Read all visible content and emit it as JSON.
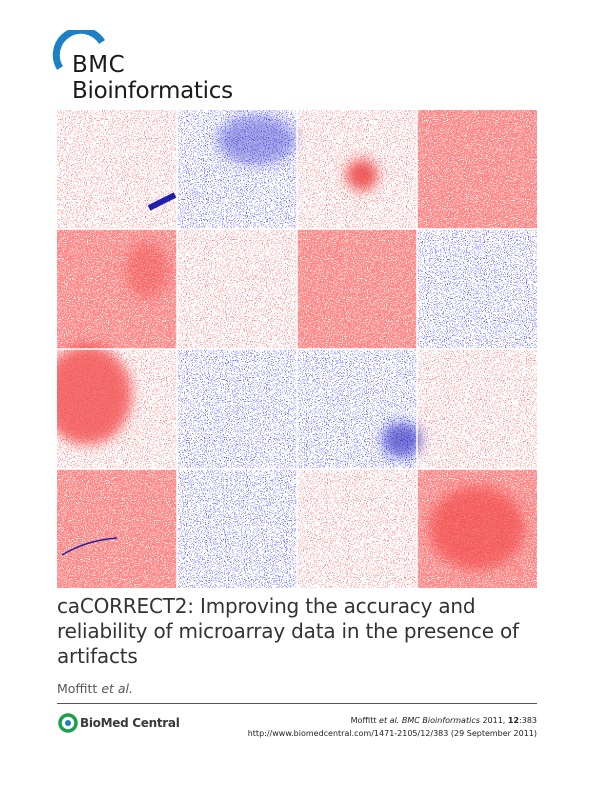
{
  "header": {
    "brand": "BMC",
    "journal": "Bioinformatics"
  },
  "article": {
    "title": "caCORRECT2: Improving the accuracy and reliability of microarray data in the presence of artifacts",
    "author": "Moffitt",
    "etal": "et al."
  },
  "footer": {
    "publisher": "BioMed Central",
    "citation": {
      "author": "Moffitt",
      "etal": "et al.",
      "journal": "BMC Bioinformatics",
      "year": "2011,",
      "volume": "12",
      "article": ":383"
    },
    "url": "http://www.biomedcentral.com/1471-2105/12/383 (29 September 2011)"
  }
}
